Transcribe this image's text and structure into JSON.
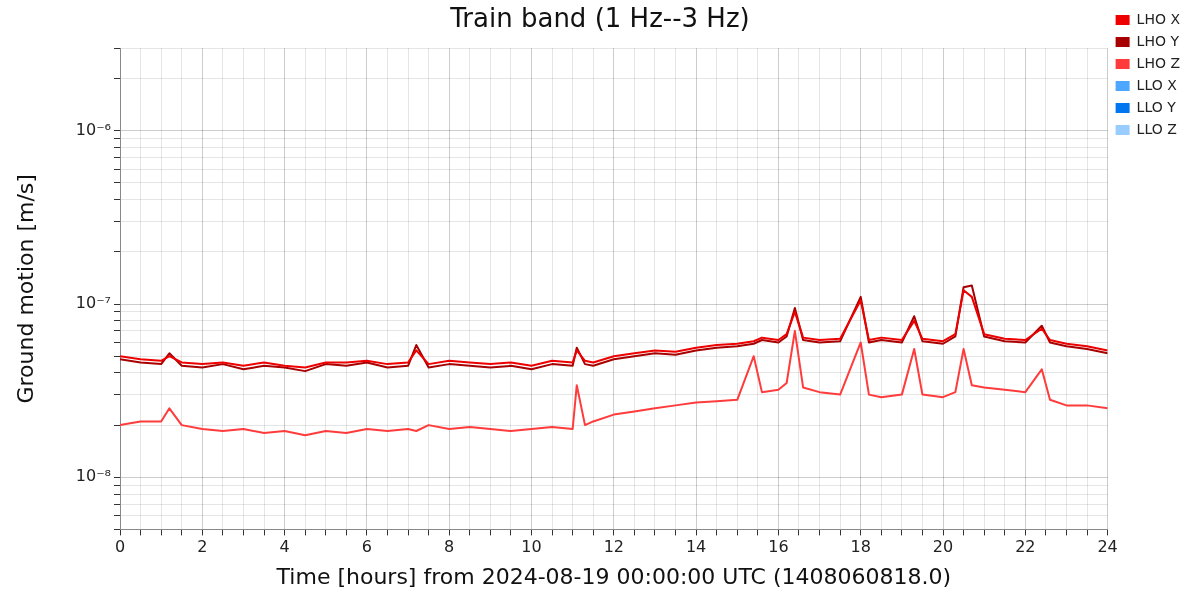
{
  "chart_data": {
    "type": "line",
    "title": "Train band (1 Hz--3 Hz)",
    "xlabel": "Time [hours] from 2024-08-19 00:00:00 UTC (1408060818.0)",
    "ylabel": "Ground motion [m/s]",
    "x": [
      0,
      0.5,
      1,
      1.2,
      1.5,
      2,
      2.5,
      3,
      3.5,
      4,
      4.5,
      5,
      5.5,
      6,
      6.5,
      7,
      7.2,
      7.5,
      8,
      8.5,
      9,
      9.5,
      10,
      10.5,
      11,
      11.1,
      11.3,
      11.5,
      12,
      12.5,
      13,
      13.5,
      14,
      14.5,
      15,
      15.4,
      15.6,
      16,
      16.2,
      16.4,
      16.6,
      17,
      17.5,
      18,
      18.2,
      18.5,
      19,
      19.3,
      19.5,
      20,
      20.3,
      20.5,
      20.7,
      21,
      21.5,
      22,
      22.4,
      22.6,
      23,
      23.5,
      24
    ],
    "series": [
      {
        "name": "LHO X",
        "color": "#ee0000",
        "values": [
          5e-08,
          4.8e-08,
          4.7e-08,
          5e-08,
          4.6e-08,
          4.5e-08,
          4.6e-08,
          4.4e-08,
          4.6e-08,
          4.4e-08,
          4.3e-08,
          4.6e-08,
          4.6e-08,
          4.7e-08,
          4.5e-08,
          4.6e-08,
          5.4e-08,
          4.5e-08,
          4.7e-08,
          4.6e-08,
          4.5e-08,
          4.6e-08,
          4.4e-08,
          4.7e-08,
          4.6e-08,
          5.4e-08,
          4.7e-08,
          4.6e-08,
          5e-08,
          5.2e-08,
          5.4e-08,
          5.3e-08,
          5.6e-08,
          5.8e-08,
          5.9e-08,
          6.1e-08,
          6.4e-08,
          6.2e-08,
          6.7e-08,
          9e-08,
          6.4e-08,
          6.2e-08,
          6.3e-08,
          1.05e-07,
          6.2e-08,
          6.4e-08,
          6.2e-08,
          8e-08,
          6.3e-08,
          6.1e-08,
          6.7e-08,
          1.2e-07,
          1.1e-07,
          6.7e-08,
          6.3e-08,
          6.2e-08,
          7.2e-08,
          6.2e-08,
          5.9e-08,
          5.7e-08,
          5.4e-08
        ]
      },
      {
        "name": "LHO Y",
        "color": "#a80000",
        "values": [
          4.8e-08,
          4.6e-08,
          4.5e-08,
          5.2e-08,
          4.4e-08,
          4.3e-08,
          4.5e-08,
          4.2e-08,
          4.4e-08,
          4.3e-08,
          4.1e-08,
          4.5e-08,
          4.4e-08,
          4.6e-08,
          4.3e-08,
          4.4e-08,
          5.8e-08,
          4.3e-08,
          4.5e-08,
          4.4e-08,
          4.3e-08,
          4.4e-08,
          4.2e-08,
          4.5e-08,
          4.4e-08,
          5.6e-08,
          4.5e-08,
          4.4e-08,
          4.8e-08,
          5e-08,
          5.2e-08,
          5.1e-08,
          5.4e-08,
          5.6e-08,
          5.7e-08,
          5.9e-08,
          6.2e-08,
          6e-08,
          6.5e-08,
          9.5e-08,
          6.2e-08,
          6e-08,
          6.1e-08,
          1.1e-07,
          6e-08,
          6.2e-08,
          6e-08,
          8.5e-08,
          6.1e-08,
          5.9e-08,
          6.5e-08,
          1.25e-07,
          1.28e-07,
          6.5e-08,
          6.1e-08,
          6e-08,
          7.5e-08,
          6e-08,
          5.7e-08,
          5.5e-08,
          5.2e-08
        ]
      },
      {
        "name": "LHO Z",
        "color": "#ff3b3b",
        "values": [
          2e-08,
          2.1e-08,
          2.1e-08,
          2.5e-08,
          2e-08,
          1.9e-08,
          1.85e-08,
          1.9e-08,
          1.8e-08,
          1.85e-08,
          1.75e-08,
          1.85e-08,
          1.8e-08,
          1.9e-08,
          1.85e-08,
          1.9e-08,
          1.85e-08,
          2e-08,
          1.9e-08,
          1.95e-08,
          1.9e-08,
          1.85e-08,
          1.9e-08,
          1.95e-08,
          1.9e-08,
          3.4e-08,
          2e-08,
          2.1e-08,
          2.3e-08,
          2.4e-08,
          2.5e-08,
          2.6e-08,
          2.7e-08,
          2.75e-08,
          2.8e-08,
          5e-08,
          3.1e-08,
          3.2e-08,
          3.5e-08,
          7e-08,
          3.3e-08,
          3.1e-08,
          3e-08,
          6e-08,
          3e-08,
          2.9e-08,
          3e-08,
          5.5e-08,
          3e-08,
          2.9e-08,
          3.1e-08,
          5.5e-08,
          3.4e-08,
          3.3e-08,
          3.2e-08,
          3.1e-08,
          4.2e-08,
          2.8e-08,
          2.6e-08,
          2.6e-08,
          2.5e-08
        ]
      },
      {
        "name": "LLO X",
        "color": "#4da6ff",
        "values": [
          null,
          null,
          null,
          null,
          null,
          null,
          null,
          null,
          null,
          null,
          null,
          null,
          null,
          null,
          null,
          null,
          null,
          null,
          null,
          null,
          null,
          null,
          null,
          null,
          null,
          null,
          null,
          null,
          null,
          null,
          null,
          null,
          null,
          null,
          null,
          null,
          null,
          null,
          null,
          null,
          null,
          null,
          null,
          null,
          null,
          null,
          null,
          null,
          null,
          null,
          null,
          null,
          null,
          null,
          null,
          null,
          null,
          null,
          null,
          null,
          null
        ]
      },
      {
        "name": "LLO Y",
        "color": "#0077ee",
        "values": [
          null,
          null,
          null,
          null,
          null,
          null,
          null,
          null,
          null,
          null,
          null,
          null,
          null,
          null,
          null,
          null,
          null,
          null,
          null,
          null,
          null,
          null,
          null,
          null,
          null,
          null,
          null,
          null,
          null,
          null,
          null,
          null,
          null,
          null,
          null,
          null,
          null,
          null,
          null,
          null,
          null,
          null,
          null,
          null,
          null,
          null,
          null,
          null,
          null,
          null,
          null,
          null,
          null,
          null,
          null,
          null,
          null,
          null,
          null,
          null,
          null
        ]
      },
      {
        "name": "LLO Z",
        "color": "#99ccff",
        "values": [
          null,
          null,
          null,
          null,
          null,
          null,
          null,
          null,
          null,
          null,
          null,
          null,
          null,
          null,
          null,
          null,
          null,
          null,
          null,
          null,
          null,
          null,
          null,
          null,
          null,
          null,
          null,
          null,
          null,
          null,
          null,
          null,
          null,
          null,
          null,
          null,
          null,
          null,
          null,
          null,
          null,
          null,
          null,
          null,
          null,
          null,
          null,
          null,
          null,
          null,
          null,
          null,
          null,
          null,
          null,
          null,
          null,
          null,
          null,
          null,
          null
        ]
      }
    ],
    "xlim": [
      0,
      24
    ],
    "xticks": [
      0,
      {
        "value": 0.5,
        "label": null
      },
      {
        "value": 1,
        "label": null
      },
      {
        "value": 1.5,
        "label": null
      },
      2,
      {
        "value": 2.5,
        "label": null
      },
      {
        "value": 3,
        "label": null
      },
      {
        "value": 3.5,
        "label": null
      },
      4,
      {
        "value": 4.5,
        "label": null
      },
      {
        "value": 5,
        "label": null
      },
      {
        "value": 5.5,
        "label": null
      },
      6,
      {
        "value": 6.5,
        "label": null
      },
      {
        "value": 7,
        "label": null
      },
      {
        "value": 7.5,
        "label": null
      },
      8,
      {
        "value": 8.5,
        "label": null
      },
      {
        "value": 9,
        "label": null
      },
      {
        "value": 9.5,
        "label": null
      },
      10,
      {
        "value": 10.5,
        "label": null
      },
      {
        "value": 11,
        "label": null
      },
      {
        "value": 11.5,
        "label": null
      },
      12,
      {
        "value": 12.5,
        "label": null
      },
      {
        "value": 13,
        "label": null
      },
      {
        "value": 13.5,
        "label": null
      },
      14,
      {
        "value": 14.5,
        "label": null
      },
      {
        "value": 15,
        "label": null
      },
      {
        "value": 15.5,
        "label": null
      },
      16,
      {
        "value": 16.5,
        "label": null
      },
      {
        "value": 17,
        "label": null
      },
      {
        "value": 17.5,
        "label": null
      },
      18,
      {
        "value": 18.5,
        "label": null
      },
      {
        "value": 19,
        "label": null
      },
      {
        "value": 19.5,
        "label": null
      },
      20,
      {
        "value": 20.5,
        "label": null
      },
      {
        "value": 21,
        "label": null
      },
      {
        "value": 21.5,
        "label": null
      },
      22,
      {
        "value": 22.5,
        "label": null
      },
      {
        "value": 23,
        "label": null
      },
      {
        "value": 23.5,
        "label": null
      },
      24
    ],
    "ylim": [
      5e-09,
      3e-06
    ],
    "yticks": [
      {
        "value": 5e-09,
        "label": null
      },
      {
        "value": 6e-09,
        "label": null
      },
      {
        "value": 7e-09,
        "label": null
      },
      {
        "value": 8e-09,
        "label": null
      },
      {
        "value": 9e-09,
        "label": null
      },
      {
        "value": 1e-08,
        "label": "10⁻⁸"
      },
      {
        "value": 2e-08,
        "label": null
      },
      {
        "value": 3e-08,
        "label": null
      },
      {
        "value": 4e-08,
        "label": null
      },
      {
        "value": 5e-08,
        "label": null
      },
      {
        "value": 6e-08,
        "label": null
      },
      {
        "value": 7e-08,
        "label": null
      },
      {
        "value": 8e-08,
        "label": null
      },
      {
        "value": 9e-08,
        "label": null
      },
      {
        "value": 1e-07,
        "label": "10⁻⁷"
      },
      {
        "value": 2e-07,
        "label": null
      },
      {
        "value": 3e-07,
        "label": null
      },
      {
        "value": 4e-07,
        "label": null
      },
      {
        "value": 5e-07,
        "label": null
      },
      {
        "value": 6e-07,
        "label": null
      },
      {
        "value": 7e-07,
        "label": null
      },
      {
        "value": 8e-07,
        "label": null
      },
      {
        "value": 9e-07,
        "label": null
      },
      {
        "value": 1e-06,
        "label": "10⁻⁶"
      },
      {
        "value": 2e-06,
        "label": null
      },
      {
        "value": 3e-06,
        "label": null
      }
    ],
    "log": "y",
    "grid": true,
    "legend": "right",
    "marker": "none",
    "line_style": "solid"
  }
}
